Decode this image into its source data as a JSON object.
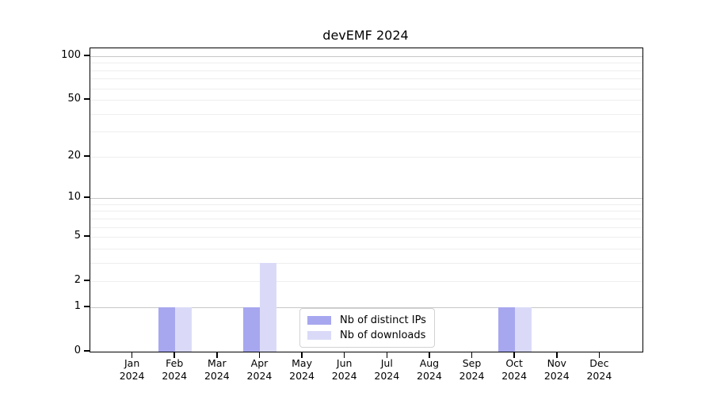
{
  "title": "devEMF 2024",
  "colors": {
    "distinct_ips_bar": "#a7a7ef",
    "downloads_bar": "#dadaf8",
    "grid_major": "#c7c7c7",
    "grid_minor": "#eeeeee",
    "spine": "#000000",
    "legend_border": "#d2d2d2",
    "background": "#ffffff"
  },
  "chart_data": {
    "type": "bar",
    "title": "devEMF 2024",
    "xlabel": "",
    "ylabel": "",
    "yscale": "log1p",
    "ylim": [
      0,
      110
    ],
    "grid": "horizontal",
    "legend_position": "lower center",
    "categories": [
      "Jan",
      "Feb",
      "Mar",
      "Apr",
      "May",
      "Jun",
      "Jul",
      "Aug",
      "Sep",
      "Oct",
      "Nov",
      "Dec"
    ],
    "year": "2024",
    "series": [
      {
        "name": "Nb of distinct IPs",
        "color": "#a7a7ef",
        "values": [
          0,
          1,
          0,
          1,
          0,
          0,
          0,
          0,
          0,
          1,
          0,
          0
        ]
      },
      {
        "name": "Nb of downloads",
        "color": "#dadaf8",
        "values": [
          0,
          1,
          0,
          3,
          0,
          0,
          0,
          0,
          0,
          1,
          0,
          0
        ]
      }
    ],
    "yticks": [
      0,
      1,
      2,
      5,
      10,
      20,
      50,
      100
    ],
    "grid_major_values": [
      1,
      10,
      100
    ],
    "grid_minor_values": [
      2,
      3,
      4,
      5,
      6,
      7,
      8,
      9,
      20,
      30,
      40,
      50,
      60,
      70,
      80,
      90
    ]
  }
}
